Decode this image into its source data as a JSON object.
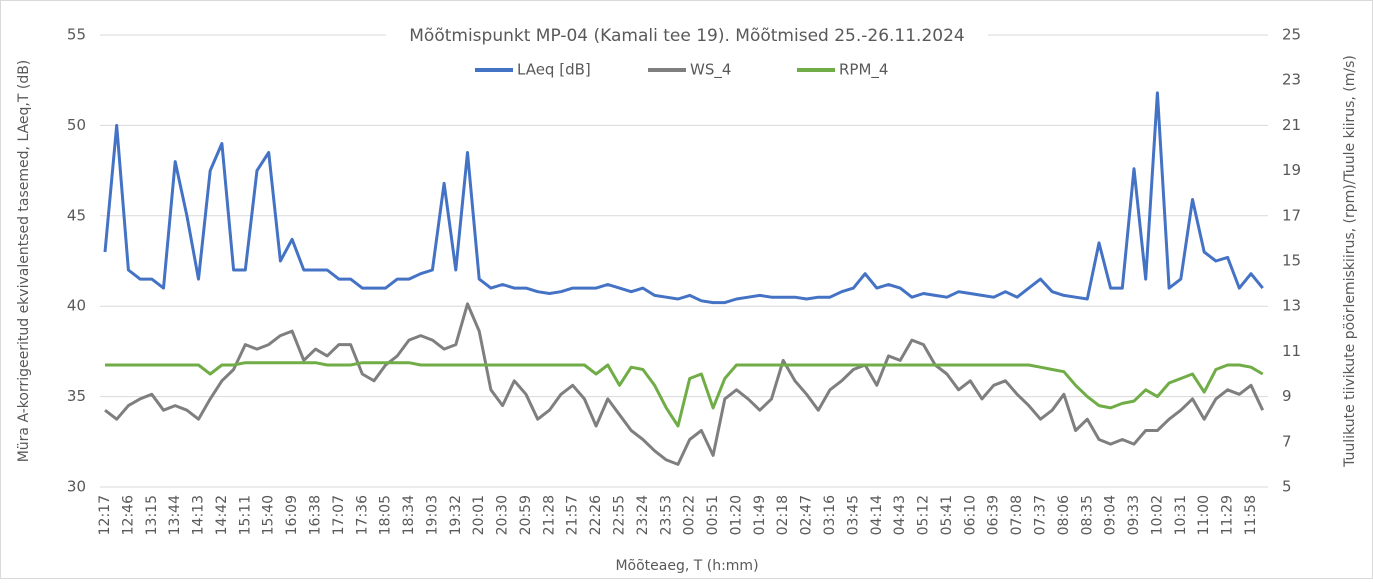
{
  "chart_data": {
    "type": "line",
    "title": "Mõõtmispunkt MP-04 (Kamali tee 19). Mõõtmised 25.-26.11.2024",
    "x_label": "Mõõteaeg, T (h:mm)",
    "y_label": "Müra A-korrigeeritud ekvivalentsed tasemed, LAeq,T (dB)",
    "y2_label": "Tuulikute tiivikute pöörlemiskiirus, (rpm)/Tuule kiirus, (m/s)",
    "ylim": [
      30,
      55
    ],
    "yticks": [
      30,
      35,
      40,
      45,
      50,
      55
    ],
    "y2lim": [
      5,
      25
    ],
    "y2ticks": [
      5,
      7,
      9,
      11,
      13,
      15,
      17,
      19,
      21,
      23,
      25
    ],
    "grid": true,
    "legend": "top",
    "categories": [
      "12:17",
      null,
      "12:46",
      null,
      "13:15",
      null,
      "13:44",
      null,
      "14:13",
      null,
      "14:42",
      null,
      "15:11",
      null,
      "15:40",
      null,
      "16:09",
      null,
      "16:38",
      null,
      "17:07",
      null,
      "17:36",
      null,
      "18:05",
      null,
      "18:34",
      null,
      "19:03",
      null,
      "19:32",
      null,
      "20:01",
      null,
      "20:30",
      null,
      "20:59",
      null,
      "21:28",
      null,
      "21:57",
      null,
      "22:26",
      null,
      "22:55",
      null,
      "23:24",
      null,
      "23:53",
      null,
      "00:22",
      null,
      "00:51",
      null,
      "01:20",
      null,
      "01:49",
      null,
      "02:18",
      null,
      "02:47",
      null,
      "03:16",
      null,
      "03:45",
      null,
      "04:14",
      null,
      "04:43",
      null,
      "05:12",
      null,
      "05:41",
      null,
      "06:10",
      null,
      "06:39",
      null,
      "07:08",
      null,
      "07:37",
      null,
      "08:06",
      null,
      "08:35",
      null,
      "09:04",
      null,
      "09:33",
      null,
      "10:02",
      null,
      "10:31",
      null,
      "11:00",
      null,
      "11:29",
      null,
      "11:58",
      null
    ],
    "series": [
      {
        "name": "LAeq [dB]",
        "color": "#4472c4",
        "axis": "y",
        "values": [
          43,
          50,
          42,
          41.5,
          41.5,
          41,
          48,
          45,
          41.5,
          47.5,
          49,
          42,
          42,
          47.5,
          48.5,
          42.5,
          43.7,
          42,
          42,
          42,
          41.5,
          41.5,
          41,
          41,
          41,
          41.5,
          41.5,
          41.8,
          42,
          46.8,
          42,
          48.5,
          41.5,
          41,
          41.2,
          41,
          41,
          40.8,
          40.7,
          40.8,
          41,
          41,
          41,
          41.2,
          41,
          40.8,
          41,
          40.6,
          40.5,
          40.4,
          40.6,
          40.3,
          40.2,
          40.2,
          40.4,
          40.5,
          40.6,
          40.5,
          40.5,
          40.5,
          40.4,
          40.5,
          40.5,
          40.8,
          41,
          41.8,
          41,
          41.2,
          41,
          40.5,
          40.7,
          40.6,
          40.5,
          40.8,
          40.7,
          40.6,
          40.5,
          40.8,
          40.5,
          41,
          41.5,
          40.8,
          40.6,
          40.5,
          40.4,
          43.5,
          41,
          41,
          47.6,
          41.5,
          51.8,
          41,
          41.5,
          45.9,
          43,
          42.5,
          42.7,
          41,
          41.8,
          41
        ]
      },
      {
        "name": "WS_4",
        "color": "#7f7f7f",
        "axis": "y2",
        "values": [
          8.4,
          8,
          8.6,
          8.9,
          9.1,
          8.4,
          8.6,
          8.4,
          8,
          8.9,
          9.7,
          10.2,
          11.3,
          11.1,
          11.3,
          11.7,
          11.9,
          10.6,
          11.1,
          10.8,
          11.3,
          11.3,
          10,
          9.7,
          10.4,
          10.8,
          11.5,
          11.7,
          11.5,
          11.1,
          11.3,
          13.1,
          11.9,
          9.3,
          8.6,
          9.7,
          9.1,
          8,
          8.4,
          9.1,
          9.5,
          8.9,
          7.7,
          8.9,
          8.2,
          7.5,
          7.1,
          6.6,
          6.2,
          6,
          7.1,
          7.5,
          6.4,
          8.9,
          9.3,
          8.9,
          8.4,
          8.9,
          10.6,
          9.7,
          9.1,
          8.4,
          9.3,
          9.7,
          10.2,
          10.4,
          9.5,
          10.8,
          10.6,
          11.5,
          11.3,
          10.4,
          10,
          9.3,
          9.7,
          8.9,
          9.5,
          9.7,
          9.1,
          8.6,
          8,
          8.4,
          9.1,
          7.5,
          8,
          7.1,
          6.9,
          7.1,
          6.9,
          7.5,
          7.5,
          8,
          8.4,
          8.9,
          8,
          8.9,
          9.3,
          9.1,
          9.5,
          8.4
        ]
      },
      {
        "name": "RPM_4",
        "color": "#70ad47",
        "axis": "y2",
        "values": [
          10.4,
          10.4,
          10.4,
          10.4,
          10.4,
          10.4,
          10.4,
          10.4,
          10.4,
          10,
          10.4,
          10.4,
          10.5,
          10.5,
          10.5,
          10.5,
          10.5,
          10.5,
          10.5,
          10.4,
          10.4,
          10.4,
          10.5,
          10.5,
          10.5,
          10.5,
          10.5,
          10.4,
          10.4,
          10.4,
          10.4,
          10.4,
          10.4,
          10.4,
          10.4,
          10.4,
          10.4,
          10.4,
          10.4,
          10.4,
          10.4,
          10.4,
          10,
          10.4,
          9.5,
          10.3,
          10.2,
          9.5,
          8.5,
          7.7,
          9.8,
          10,
          8.5,
          9.8,
          10.4,
          10.4,
          10.4,
          10.4,
          10.4,
          10.4,
          10.4,
          10.4,
          10.4,
          10.4,
          10.4,
          10.4,
          10.4,
          10.4,
          10.4,
          10.4,
          10.4,
          10.4,
          10.4,
          10.4,
          10.4,
          10.4,
          10.4,
          10.4,
          10.4,
          10.4,
          10.3,
          10.2,
          10.1,
          9.5,
          9,
          8.6,
          8.5,
          8.7,
          8.8,
          9.3,
          9,
          9.6,
          9.8,
          10,
          9.2,
          10.2,
          10.4,
          10.4,
          10.3,
          10
        ]
      }
    ]
  }
}
